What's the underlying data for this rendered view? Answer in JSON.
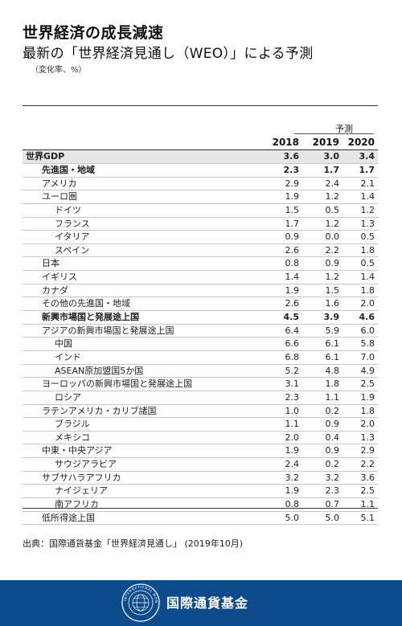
{
  "title": "世界経済の成長減速",
  "subtitle": "最新の「世界経済見通し（WEO）」による予測",
  "unit": "（変化率、%）",
  "forecast_label": "予測",
  "years": [
    "2018",
    "2019",
    "2020"
  ],
  "rows": [
    {
      "name": "世界GDP",
      "values": [
        "3.6",
        "3.0",
        "3.4"
      ],
      "level": 0,
      "style": "total"
    },
    {
      "name": "先進国・地域",
      "values": [
        "2.3",
        "1.7",
        "1.7"
      ],
      "level": 1,
      "style": "bold"
    },
    {
      "name": "アメリカ",
      "values": [
        "2.9",
        "2.4",
        "2.1"
      ],
      "level": 1
    },
    {
      "name": "ユーロ圏",
      "values": [
        "1.9",
        "1.2",
        "1.4"
      ],
      "level": 1
    },
    {
      "name": "ドイツ",
      "values": [
        "1.5",
        "0.5",
        "1.2"
      ],
      "level": 2
    },
    {
      "name": "フランス",
      "values": [
        "1.7",
        "1.2",
        "1.3"
      ],
      "level": 2
    },
    {
      "name": "イタリア",
      "values": [
        "0.9",
        "0.0",
        "0.5"
      ],
      "level": 2
    },
    {
      "name": "スペイン",
      "values": [
        "2.6",
        "2.2",
        "1.8"
      ],
      "level": 2
    },
    {
      "name": "日本",
      "values": [
        "0.8",
        "0.9",
        "0.5"
      ],
      "level": 1
    },
    {
      "name": "イギリス",
      "values": [
        "1.4",
        "1.2",
        "1.4"
      ],
      "level": 1
    },
    {
      "name": "カナダ",
      "values": [
        "1.9",
        "1.5",
        "1.8"
      ],
      "level": 1
    },
    {
      "name": "その他の先進国・地域",
      "values": [
        "2.6",
        "1.6",
        "2.0"
      ],
      "level": 1
    },
    {
      "name": "新興市場国と発展途上国",
      "values": [
        "4.5",
        "3.9",
        "4.6"
      ],
      "level": 1,
      "style": "bold"
    },
    {
      "name": "アジアの新興市場国と発展途上国",
      "values": [
        "6.4",
        "5.9",
        "6.0"
      ],
      "level": 1
    },
    {
      "name": "中国",
      "values": [
        "6.6",
        "6.1",
        "5.8"
      ],
      "level": 2
    },
    {
      "name": "インド",
      "values": [
        "6.8",
        "6.1",
        "7.0"
      ],
      "level": 2
    },
    {
      "name": "ASEAN原加盟国5か国",
      "values": [
        "5.2",
        "4.8",
        "4.9"
      ],
      "level": 2
    },
    {
      "name": "ヨーロッパの新興市場国と発展途上国",
      "values": [
        "3.1",
        "1.8",
        "2.5"
      ],
      "level": 1
    },
    {
      "name": "ロシア",
      "values": [
        "2.3",
        "1.1",
        "1.9"
      ],
      "level": 2
    },
    {
      "name": "ラテンアメリカ・カリブ諸国",
      "values": [
        "1.0",
        "0.2",
        "1.8"
      ],
      "level": 1
    },
    {
      "name": "ブラジル",
      "values": [
        "1.1",
        "0.9",
        "2.0"
      ],
      "level": 2
    },
    {
      "name": "メキシコ",
      "values": [
        "2.0",
        "0.4",
        "1.3"
      ],
      "level": 2
    },
    {
      "name": "中東・中央アジア",
      "values": [
        "1.9",
        "0.9",
        "2.9"
      ],
      "level": 1
    },
    {
      "name": "サウジアラビア",
      "values": [
        "2.4",
        "0.2",
        "2.2"
      ],
      "level": 2
    },
    {
      "name": "サブサハラアフリカ",
      "values": [
        "3.2",
        "3.2",
        "3.6"
      ],
      "level": 1
    },
    {
      "name": "ナイジェリア",
      "values": [
        "1.9",
        "2.3",
        "2.5"
      ],
      "level": 2
    },
    {
      "name": "南アフリカ",
      "values": [
        "0.8",
        "0.7",
        "1.1"
      ],
      "level": 2
    },
    {
      "name": "低所得途上国",
      "values": [
        "5.0",
        "5.0",
        "5.1"
      ],
      "level": 1
    }
  ],
  "source": "出典：国際通貨基金「世界経済見通し」 (2019年10月)",
  "footer": {
    "org_name": "国際通貨基金",
    "seal_text": "INTERNATIONAL MONETARY FUND"
  },
  "colors": {
    "footer_bg": "#0c4b8c",
    "total_row_bg": "#e6e6e6"
  }
}
